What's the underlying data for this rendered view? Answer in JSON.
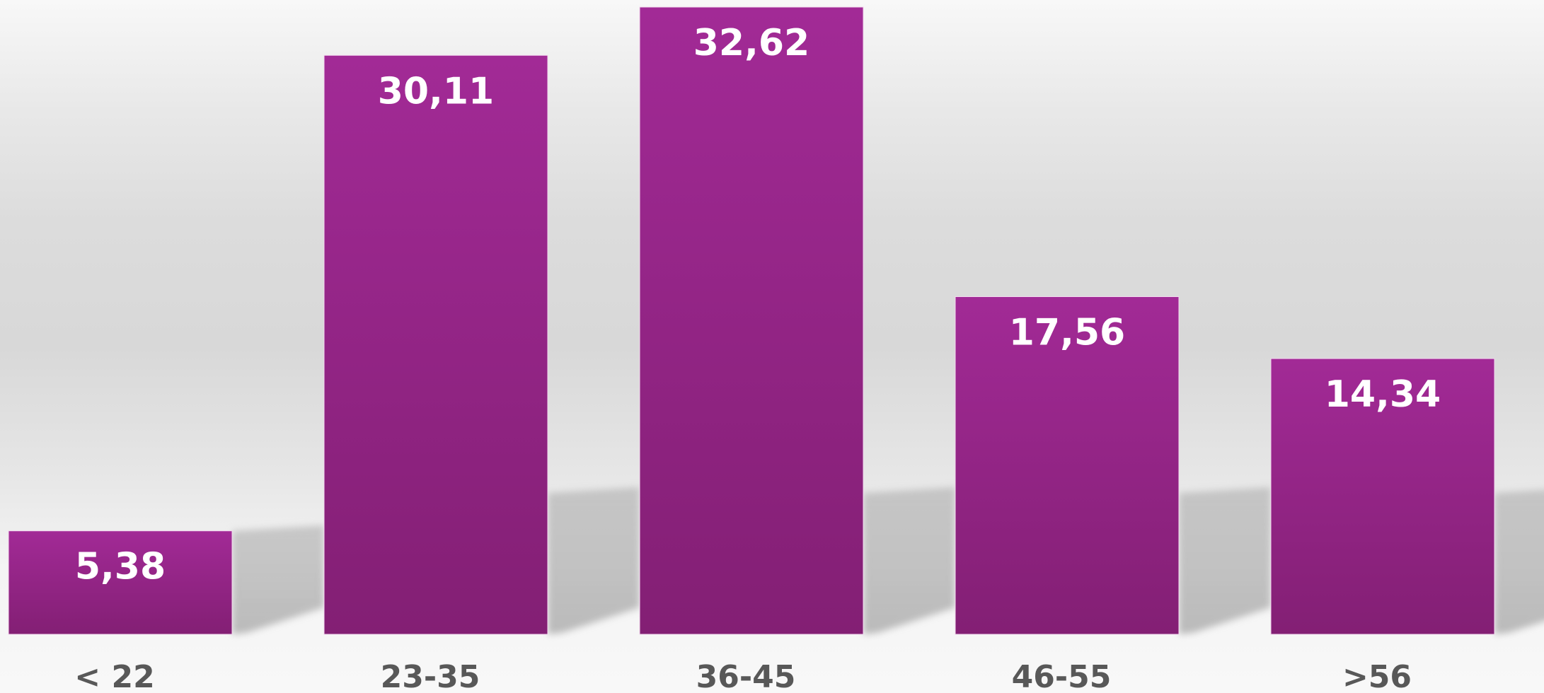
{
  "chart_data": {
    "type": "bar",
    "categories": [
      "< 22",
      "23-35",
      "36-45",
      "46-55",
      ">56"
    ],
    "values": [
      5.38,
      30.11,
      32.62,
      17.56,
      14.34
    ],
    "value_labels": [
      "5,38",
      "30,11",
      "32,62",
      "17,56",
      "14,34"
    ],
    "title": "",
    "xlabel": "",
    "ylabel": "",
    "ylim": [
      0,
      32.62
    ],
    "grid": false,
    "legend": "none",
    "colors": {
      "bar_top": "#a22a96",
      "bar_bottom": "#831f74",
      "value_text": "#ffffff",
      "category_text": "#585858"
    }
  }
}
